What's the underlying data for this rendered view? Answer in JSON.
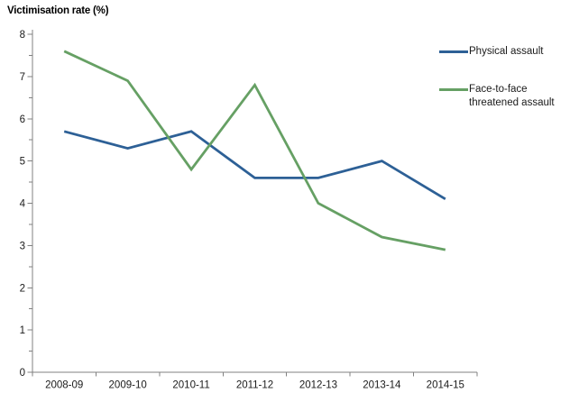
{
  "chart_data": {
    "type": "line",
    "title": "Victimisation rate (%)",
    "ylabel": "Victimisation rate (%)",
    "xlabel": "",
    "categories": [
      "2008-09",
      "2009-10",
      "2010-11",
      "2011-12",
      "2012-13",
      "2013-14",
      "2014-15"
    ],
    "series": [
      {
        "name": "Physical assault",
        "label_lines": [
          "Physical assault"
        ],
        "color": "#2D6096",
        "values": [
          5.7,
          5.3,
          5.7,
          4.6,
          4.6,
          5.0,
          4.1
        ]
      },
      {
        "name": "Face-to-face threatened assault",
        "label_lines": [
          "Face-to-face",
          "threatened assault"
        ],
        "color": "#66A064",
        "values": [
          7.6,
          6.9,
          4.8,
          6.8,
          4.0,
          3.2,
          2.9
        ]
      }
    ],
    "ylim": [
      0,
      8
    ],
    "yticks": [
      0,
      1,
      2,
      3,
      4,
      5,
      6,
      7,
      8
    ],
    "ytick_minor_step": 0.5,
    "grid": false,
    "legend_position": "top-right",
    "axis_color": "#808080",
    "tick_label_color": "#1a1a1a",
    "background_color": "#ffffff"
  }
}
